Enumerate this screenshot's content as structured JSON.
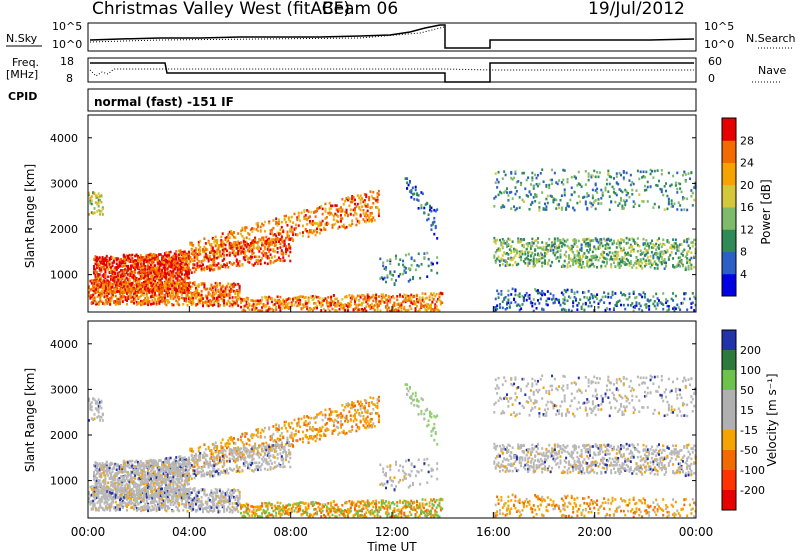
{
  "header": {
    "title": "Christmas Valley West (fitACF)",
    "beam": "Beam 06",
    "date": "19/Jul/2012"
  },
  "nsky_panel": {
    "left_label": "N.Sky",
    "right_label": "N.Search",
    "ticks": [
      "10^5",
      "10^0"
    ]
  },
  "freq_panel": {
    "left_label_1": "Freq.",
    "left_label_2": "[MHz]",
    "left_ticks": [
      "18",
      "8"
    ],
    "right_label": "Nave",
    "right_ticks": [
      "60",
      "0"
    ]
  },
  "cpid_panel": {
    "label": "CPID",
    "value": "normal (fast) -151 IF"
  },
  "axes": {
    "y_label": "Slant Range [km]",
    "y_ticks": [
      "4000",
      "3000",
      "2000",
      "1000"
    ],
    "x_label": "Time UT",
    "x_ticks": [
      "00:00",
      "04:00",
      "08:00",
      "12:00",
      "16:00",
      "20:00",
      "00:00"
    ]
  },
  "colorbars": {
    "power": {
      "label": "Power [dB]",
      "ticks": [
        "28",
        "24",
        "20",
        "16",
        "12",
        "8",
        "4"
      ],
      "colors": [
        "#0000e6",
        "#2b5fc8",
        "#2e8b57",
        "#7dbb6a",
        "#d4c83a",
        "#f5a300",
        "#f26a00",
        "#e60000"
      ]
    },
    "velocity": {
      "label": "Velocity [m s⁻¹]",
      "ticks": [
        "200",
        "100",
        "50",
        "15",
        "-15",
        "-50",
        "-100",
        "-200"
      ],
      "colors": [
        "#2233aa",
        "#2e7a3c",
        "#6cc24a",
        "#b0b0b0",
        "#b0b0b0",
        "#f5a300",
        "#f26a00",
        "#ff3300",
        "#e60000"
      ]
    }
  },
  "chart_data": {
    "type": "heatmap",
    "x_range_hours": [
      0,
      24
    ],
    "y_range_km": [
      180,
      4500
    ],
    "data_gap_hours": [
      14.1,
      16.0
    ],
    "power_scale_db": [
      0,
      30
    ],
    "velocity_scale_ms": [
      -250,
      250
    ],
    "grid": false
  }
}
